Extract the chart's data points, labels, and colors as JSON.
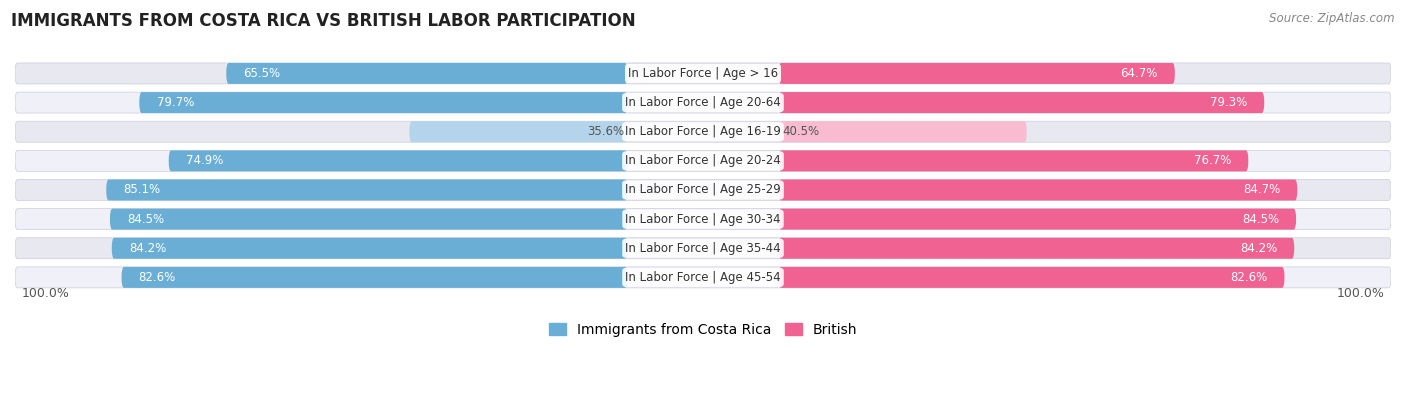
{
  "title": "IMMIGRANTS FROM COSTA RICA VS BRITISH LABOR PARTICIPATION",
  "source": "Source: ZipAtlas.com",
  "categories": [
    "In Labor Force | Age > 16",
    "In Labor Force | Age 20-64",
    "In Labor Force | Age 16-19",
    "In Labor Force | Age 20-24",
    "In Labor Force | Age 25-29",
    "In Labor Force | Age 30-34",
    "In Labor Force | Age 35-44",
    "In Labor Force | Age 45-54"
  ],
  "costa_rica_values": [
    65.5,
    79.7,
    35.6,
    74.9,
    85.1,
    84.5,
    84.2,
    82.6
  ],
  "british_values": [
    64.7,
    79.3,
    40.5,
    76.7,
    84.7,
    84.5,
    84.2,
    82.6
  ],
  "costa_rica_color": "#6aaed6",
  "british_color": "#f06292",
  "costa_rica_light_color": "#b3d4ea",
  "british_light_color": "#f8bbd0",
  "row_bg_color_a": "#e8e8f0",
  "row_bg_color_b": "#f0f0f8",
  "max_value": 100.0,
  "label_fontsize": 8.5,
  "title_fontsize": 12,
  "source_fontsize": 8.5,
  "legend_fontsize": 10,
  "axis_label_fontsize": 9,
  "value_fontsize": 8.5,
  "background_color": "#ffffff"
}
